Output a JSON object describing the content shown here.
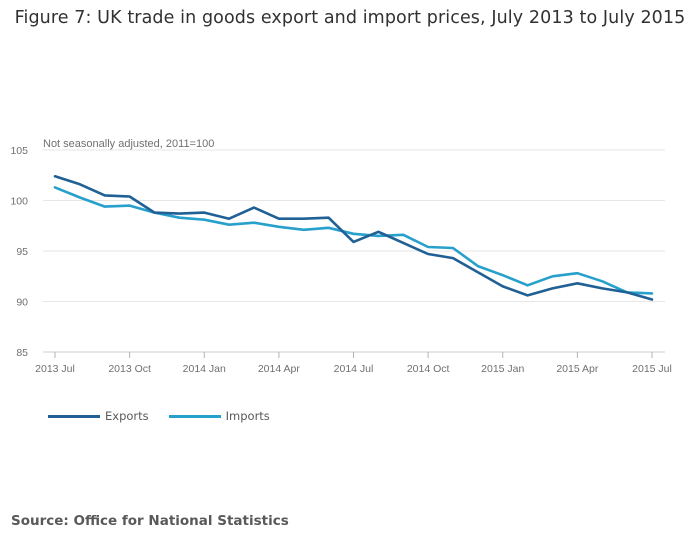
{
  "title": "Figure 7: UK trade in goods export and import prices, July 2013 to July 2015",
  "source": "Source: Office for National Statistics",
  "colors": {
    "exports": "#206095",
    "imports": "#27a0cc",
    "grid": "#e6e6e6",
    "axis_text": "#707070"
  },
  "chart_data": {
    "type": "line",
    "title": "Figure 7: UK trade in goods export and import prices, July 2013 to July 2015",
    "ylabel": "Not seasonally adjusted, 2011=100",
    "xlabel": "",
    "ylim": [
      85,
      105
    ],
    "yticks": [
      85,
      90,
      95,
      100,
      105
    ],
    "x": [
      "2013 Jul",
      "2013 Aug",
      "2013 Sep",
      "2013 Oct",
      "2013 Nov",
      "2013 Dec",
      "2014 Jan",
      "2014 Feb",
      "2014 Mar",
      "2014 Apr",
      "2014 May",
      "2014 Jun",
      "2014 Jul",
      "2014 Aug",
      "2014 Sep",
      "2014 Oct",
      "2014 Nov",
      "2014 Dec",
      "2015 Jan",
      "2015 Feb",
      "2015 Mar",
      "2015 Apr",
      "2015 May",
      "2015 Jun",
      "2015 Jul"
    ],
    "xtick_labels": [
      "2013 Jul",
      "2013 Oct",
      "2014 Jan",
      "2014 Apr",
      "2014 Jul",
      "2014 Oct",
      "2015 Jan",
      "2015 Apr",
      "2015 Jul"
    ],
    "xtick_index": [
      0,
      3,
      6,
      9,
      12,
      15,
      18,
      21,
      24
    ],
    "series": [
      {
        "name": "Exports",
        "color": "#206095",
        "values": [
          102.4,
          101.6,
          100.5,
          100.4,
          98.8,
          98.7,
          98.8,
          98.2,
          99.3,
          98.2,
          98.2,
          98.3,
          95.9,
          96.9,
          95.8,
          94.7,
          94.3,
          92.9,
          91.5,
          90.6,
          91.3,
          91.8,
          91.3,
          90.9,
          90.2
        ]
      },
      {
        "name": "Imports",
        "color": "#27a0cc",
        "values": [
          101.3,
          100.3,
          99.4,
          99.5,
          98.8,
          98.3,
          98.1,
          97.6,
          97.8,
          97.4,
          97.1,
          97.3,
          96.7,
          96.5,
          96.6,
          95.4,
          95.3,
          93.5,
          92.6,
          91.6,
          92.5,
          92.8,
          92.0,
          90.9,
          90.8
        ]
      }
    ],
    "legend_position": "bottom-left"
  }
}
